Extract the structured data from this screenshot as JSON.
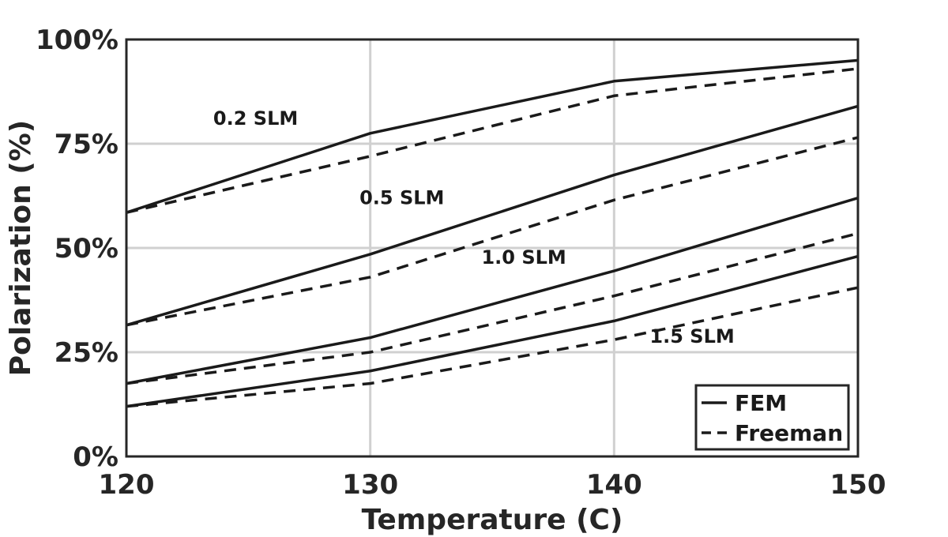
{
  "chart_data": {
    "type": "line",
    "xlabel": "Temperature (C)",
    "ylabel": "Polarization (%)",
    "x": [
      120,
      130,
      140,
      150
    ],
    "xlim": [
      120,
      150
    ],
    "ylim": [
      0,
      100
    ],
    "x_ticks": [
      {
        "value": 120,
        "label": "120"
      },
      {
        "value": 130,
        "label": "130"
      },
      {
        "value": 140,
        "label": "140"
      },
      {
        "value": 150,
        "label": "150"
      }
    ],
    "y_ticks": [
      {
        "value": 0,
        "label": "0%"
      },
      {
        "value": 25,
        "label": "25%"
      },
      {
        "value": 50,
        "label": "50%"
      },
      {
        "value": 75,
        "label": "75%"
      },
      {
        "value": 100,
        "label": "100%"
      }
    ],
    "grid": true,
    "legend": {
      "position": "bottom-right",
      "entries": [
        {
          "label": "FEM",
          "style": "solid"
        },
        {
          "label": "Freeman",
          "style": "dashed"
        }
      ]
    },
    "series": [
      {
        "group": "0.2 SLM",
        "model": "FEM",
        "style": "solid",
        "values": [
          58.5,
          77.5,
          90,
          95
        ]
      },
      {
        "group": "0.2 SLM",
        "model": "Freeman",
        "style": "dashed",
        "values": [
          58.5,
          72,
          86.5,
          93
        ]
      },
      {
        "group": "0.5 SLM",
        "model": "FEM",
        "style": "solid",
        "values": [
          31.5,
          48.5,
          67.5,
          84
        ]
      },
      {
        "group": "0.5 SLM",
        "model": "Freeman",
        "style": "dashed",
        "values": [
          31.5,
          43,
          61.5,
          76.5
        ]
      },
      {
        "group": "1.0 SLM",
        "model": "FEM",
        "style": "solid",
        "values": [
          17.5,
          28.5,
          44.5,
          62
        ]
      },
      {
        "group": "1.0 SLM",
        "model": "Freeman",
        "style": "dashed",
        "values": [
          17.5,
          25,
          38.5,
          53.5
        ]
      },
      {
        "group": "1.5 SLM",
        "model": "FEM",
        "style": "solid",
        "values": [
          12,
          20.5,
          32.5,
          48
        ]
      },
      {
        "group": "1.5 SLM",
        "model": "Freeman",
        "style": "dashed",
        "values": [
          12,
          17.5,
          28,
          40.5
        ]
      }
    ],
    "annotations": [
      {
        "text": "0.2 SLM",
        "x": 125.3,
        "y": 79.5
      },
      {
        "text": "0.5 SLM",
        "x": 131.3,
        "y": 60.5
      },
      {
        "text": "1.0 SLM",
        "x": 136.3,
        "y": 46.2
      },
      {
        "text": "1.5 SLM",
        "x": 143.2,
        "y": 27.3
      }
    ],
    "colors": {
      "line": "#1a1a1a",
      "grid": "#d0d0d0",
      "frame": "#262626"
    }
  }
}
